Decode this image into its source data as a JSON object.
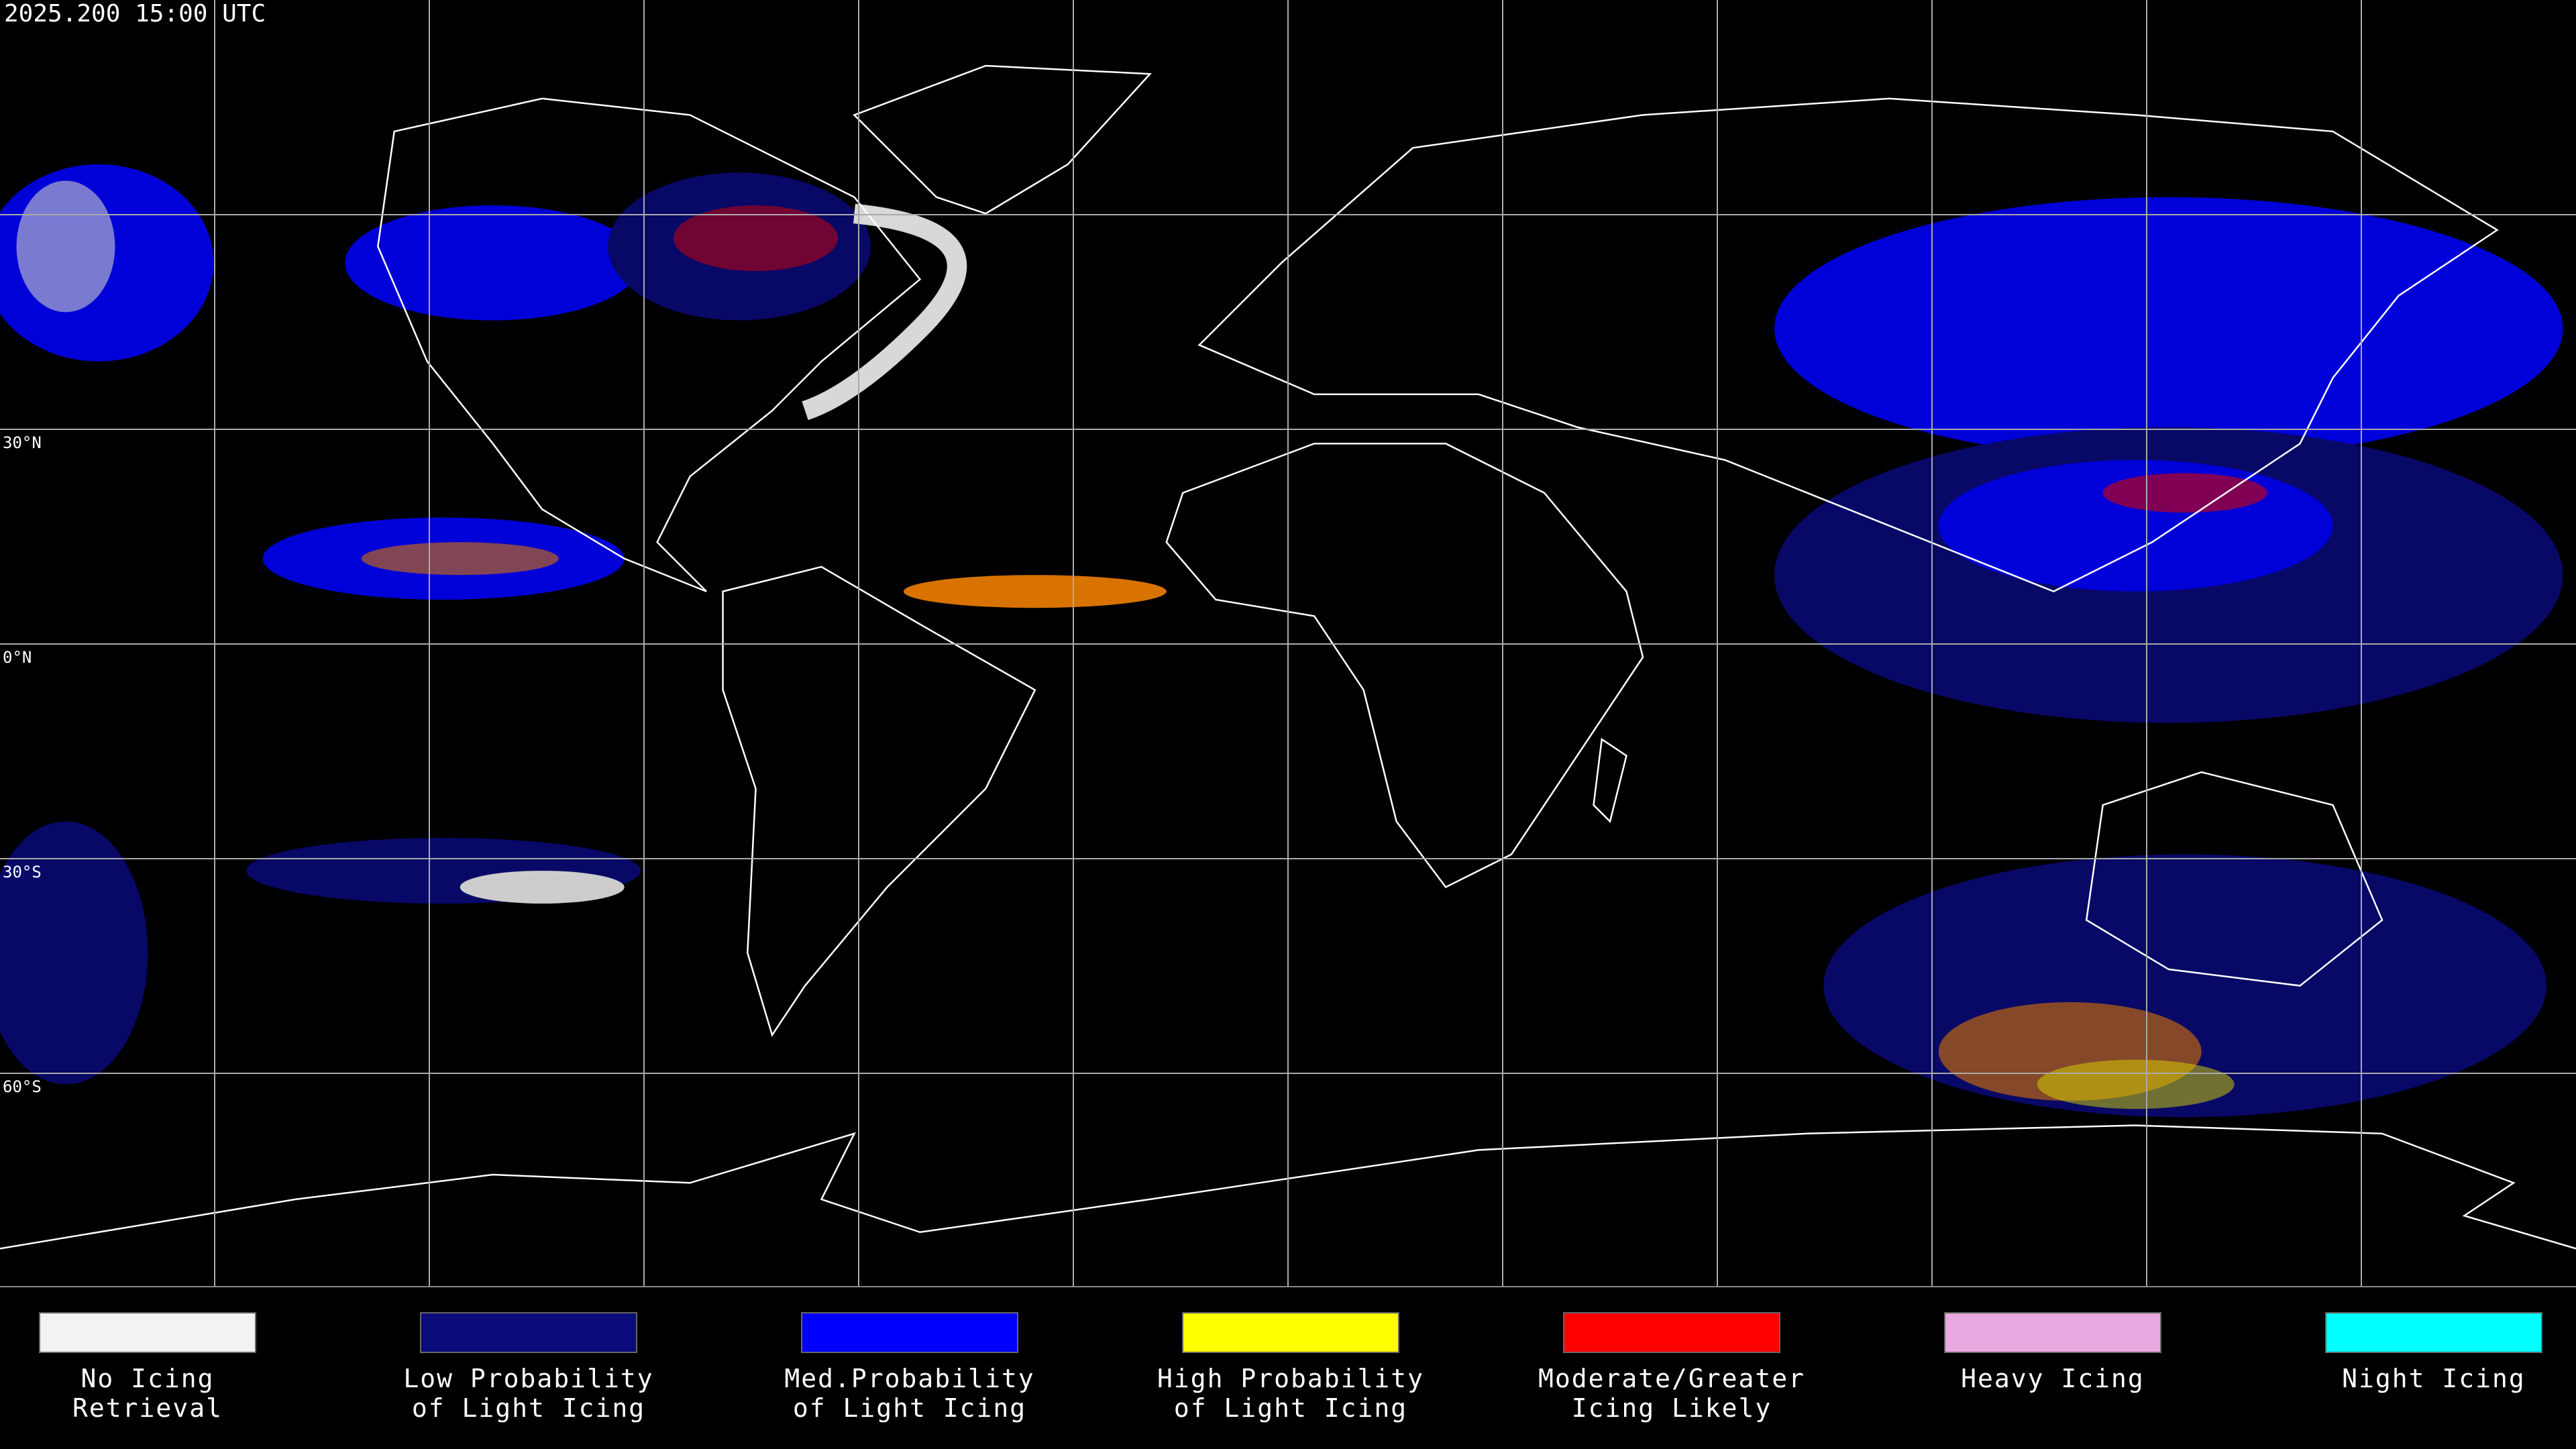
{
  "header": {
    "timestamp": "2025.200 15:00 UTC"
  },
  "grid": {
    "lat_labels": [
      "30°N",
      "0°N",
      "30°S",
      "60°S"
    ]
  },
  "legend": {
    "items": [
      {
        "lines": [
          "No Icing",
          "Retrieval"
        ],
        "color": "#f2f2f2"
      },
      {
        "lines": [
          "Low Probability",
          "of Light Icing"
        ],
        "color": "#0a0a7a"
      },
      {
        "lines": [
          "Med.Probability",
          "of Light Icing"
        ],
        "color": "#0000ff"
      },
      {
        "lines": [
          "High Probability",
          "of Light Icing"
        ],
        "color": "#ffff00"
      },
      {
        "lines": [
          "Moderate/Greater",
          "Icing Likely"
        ],
        "color": "#ff0000"
      },
      {
        "lines": [
          "Heavy Icing"
        ],
        "color": "#e8a8e0"
      },
      {
        "lines": [
          "Night Icing"
        ],
        "color": "#00ffff"
      }
    ]
  }
}
